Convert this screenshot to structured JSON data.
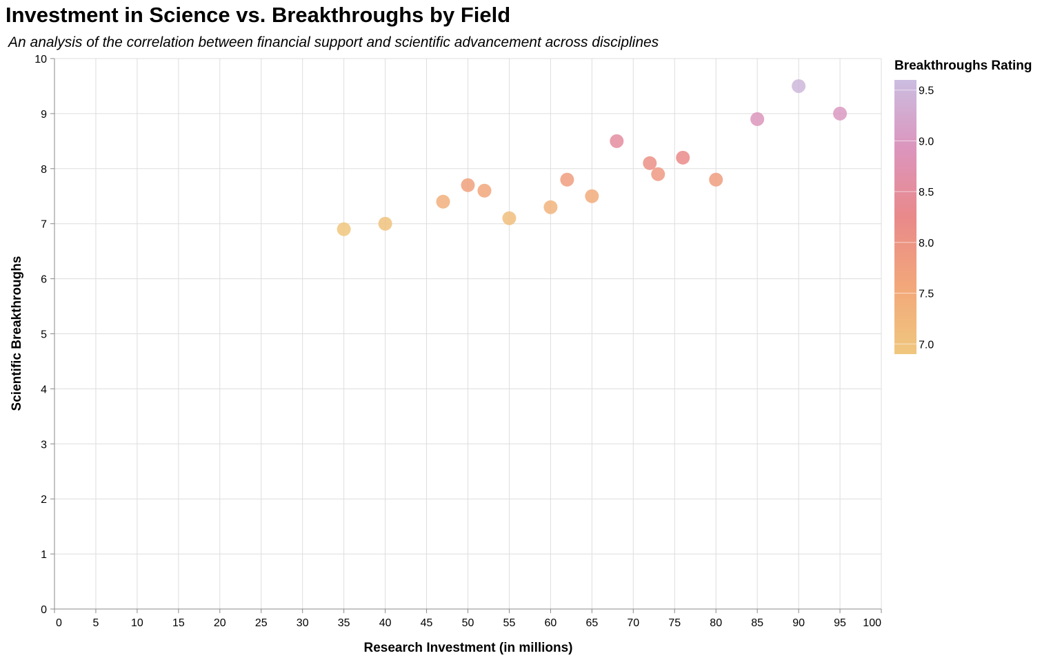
{
  "chart_data": {
    "type": "scatter",
    "title": "Investment in Science vs. Breakthroughs by Field",
    "subtitle": "An analysis of the correlation between financial support and scientific advancement across disciplines",
    "xlabel": "Research Investment (in millions)",
    "ylabel": "Scientific Breakthroughs",
    "xlim": [
      0,
      100
    ],
    "ylim": [
      0,
      10
    ],
    "x_ticks": [
      "0",
      "5",
      "10",
      "15",
      "20",
      "25",
      "30",
      "35",
      "40",
      "45",
      "50",
      "55",
      "60",
      "65",
      "70",
      "75",
      "80",
      "85",
      "90",
      "95",
      "100"
    ],
    "y_ticks": [
      "0",
      "1",
      "2",
      "3",
      "4",
      "5",
      "6",
      "7",
      "8",
      "9",
      "10"
    ],
    "grid": true,
    "color_scale": {
      "title": "Breakthroughs Rating",
      "domain": [
        6.9,
        9.6
      ],
      "ticks": [
        "7.0",
        "7.5",
        "8.0",
        "8.5",
        "9.0",
        "9.5"
      ],
      "colors": [
        "#f0c77e",
        "#f2a77a",
        "#e9898a",
        "#dc95bd",
        "#cbbde0"
      ]
    },
    "points": [
      {
        "x": 35,
        "y": 6.9
      },
      {
        "x": 40,
        "y": 7.0
      },
      {
        "x": 47,
        "y": 7.4
      },
      {
        "x": 50,
        "y": 7.7
      },
      {
        "x": 52,
        "y": 7.6
      },
      {
        "x": 55,
        "y": 7.1
      },
      {
        "x": 60,
        "y": 7.3
      },
      {
        "x": 62,
        "y": 7.8
      },
      {
        "x": 65,
        "y": 7.5
      },
      {
        "x": 68,
        "y": 8.5
      },
      {
        "x": 72,
        "y": 8.1
      },
      {
        "x": 73,
        "y": 7.9
      },
      {
        "x": 76,
        "y": 8.2
      },
      {
        "x": 80,
        "y": 7.8
      },
      {
        "x": 85,
        "y": 8.9
      },
      {
        "x": 90,
        "y": 9.5
      },
      {
        "x": 95,
        "y": 9.0
      }
    ]
  }
}
